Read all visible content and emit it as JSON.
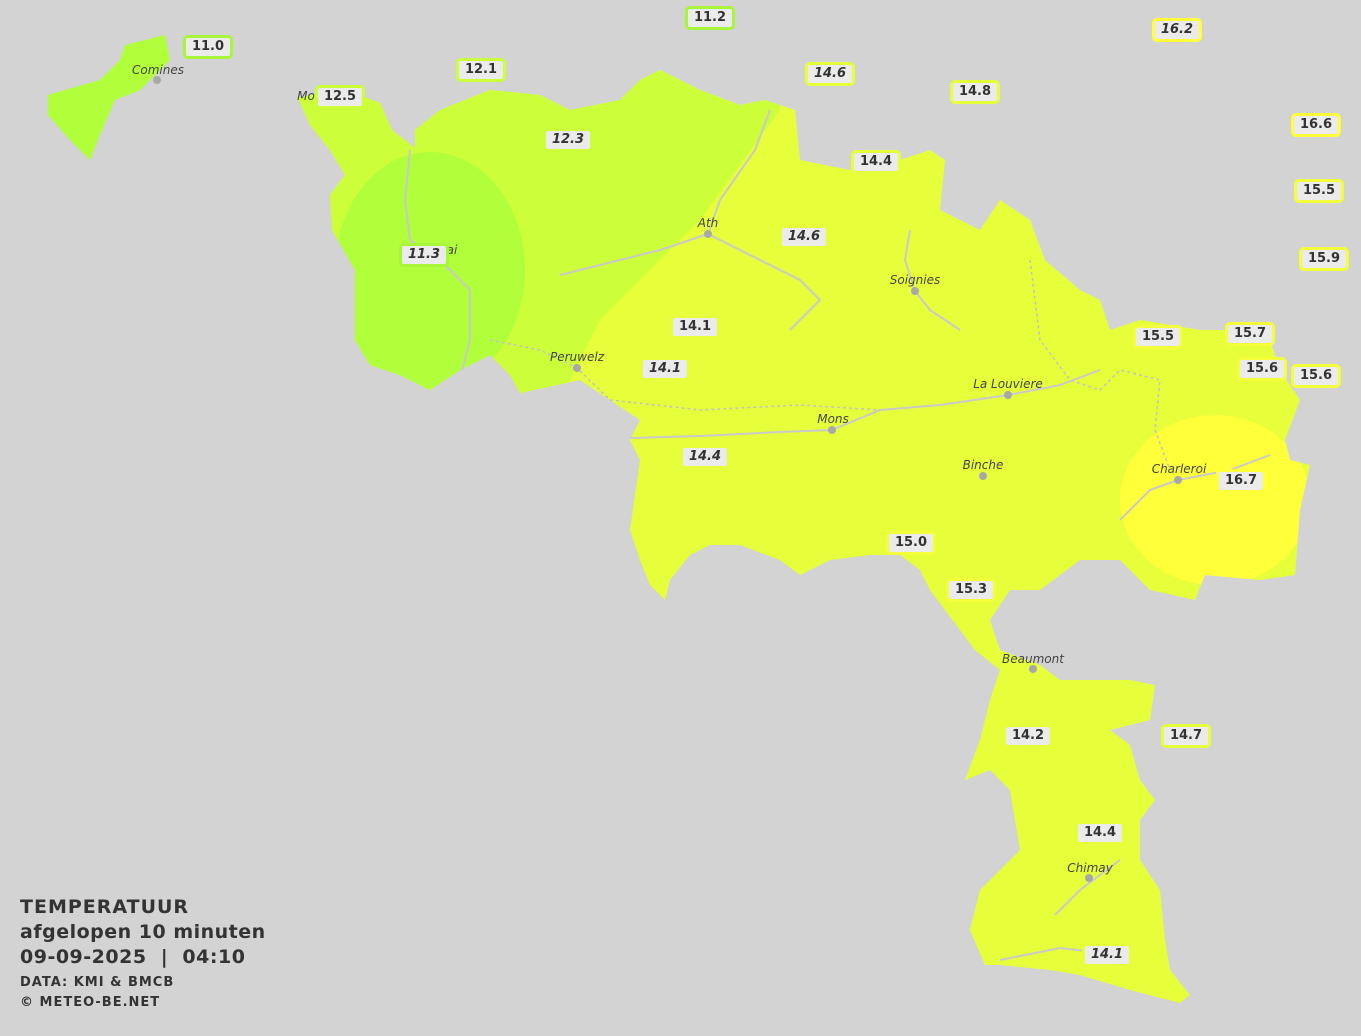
{
  "legend": {
    "title": "TEMPERATUUR",
    "period": "afgelopen 10 minuten",
    "datetime": "09-09-2025  |  04:10",
    "source": "DATA: KMI & BMCB",
    "copyright": "© METEO-BE.NET"
  },
  "color_scale": {
    "11": "#a8f53a",
    "12": "#ccff3a",
    "14": "#e6ff3a",
    "15": "#f2ff3a",
    "16": "#ffff3a"
  },
  "cities": [
    {
      "name": "Comines"
    },
    {
      "name": "Mo"
    },
    {
      "name": "ai"
    },
    {
      "name": "Ath"
    },
    {
      "name": "Soignies"
    },
    {
      "name": "Peruwelz"
    },
    {
      "name": "La Louviere"
    },
    {
      "name": "Mons"
    },
    {
      "name": "Binche"
    },
    {
      "name": "Charleroi"
    },
    {
      "name": "Beaumont"
    },
    {
      "name": "Chimay"
    }
  ],
  "stations": [
    {
      "value": "11.2",
      "italic": false
    },
    {
      "value": "16.2",
      "italic": true
    },
    {
      "value": "11.0",
      "italic": false
    },
    {
      "value": "12.1",
      "italic": false
    },
    {
      "value": "14.6",
      "italic": true
    },
    {
      "value": "14.8",
      "italic": false
    },
    {
      "value": "12.5",
      "italic": false
    },
    {
      "value": "16.6",
      "italic": false
    },
    {
      "value": "12.3",
      "italic": true
    },
    {
      "value": "14.4",
      "italic": false
    },
    {
      "value": "15.5",
      "italic": false
    },
    {
      "value": "14.6",
      "italic": true
    },
    {
      "value": "11.3",
      "italic": true
    },
    {
      "value": "15.9",
      "italic": false
    },
    {
      "value": "14.1",
      "italic": false
    },
    {
      "value": "15.5",
      "italic": false
    },
    {
      "value": "15.7",
      "italic": false
    },
    {
      "value": "15.6",
      "italic": false
    },
    {
      "value": "15.6",
      "italic": false
    },
    {
      "value": "14.1",
      "italic": true
    },
    {
      "value": "14.4",
      "italic": true
    },
    {
      "value": "16.7",
      "italic": false
    },
    {
      "value": "15.0",
      "italic": false
    },
    {
      "value": "15.3",
      "italic": false
    },
    {
      "value": "14.2",
      "italic": false
    },
    {
      "value": "14.7",
      "italic": false
    },
    {
      "value": "14.4",
      "italic": false
    },
    {
      "value": "14.1",
      "italic": true
    }
  ]
}
